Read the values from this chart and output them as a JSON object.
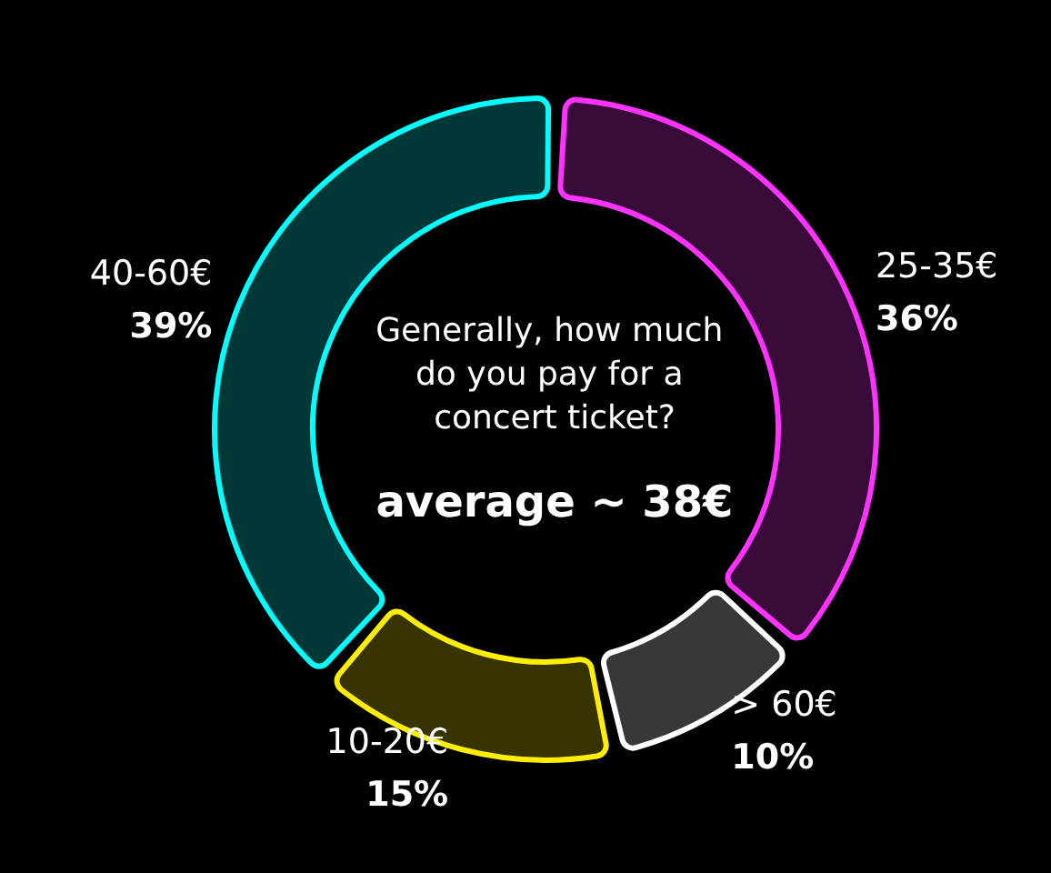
{
  "chart_data": {
    "type": "donut",
    "title": "Generally, how much do you pay for a concert ticket?",
    "annotations": [
      "average ~ 38€"
    ],
    "categories": [
      "25-35€",
      "> 60€",
      "10-20€",
      "40-60€"
    ],
    "values": [
      36,
      10,
      15,
      39
    ],
    "colors": [
      "#ff33ff",
      "#ffffff",
      "#ffee00",
      "#00ffff"
    ],
    "value_labels": [
      "36%",
      "10%",
      "15%",
      "39%"
    ],
    "legend": false
  }
}
